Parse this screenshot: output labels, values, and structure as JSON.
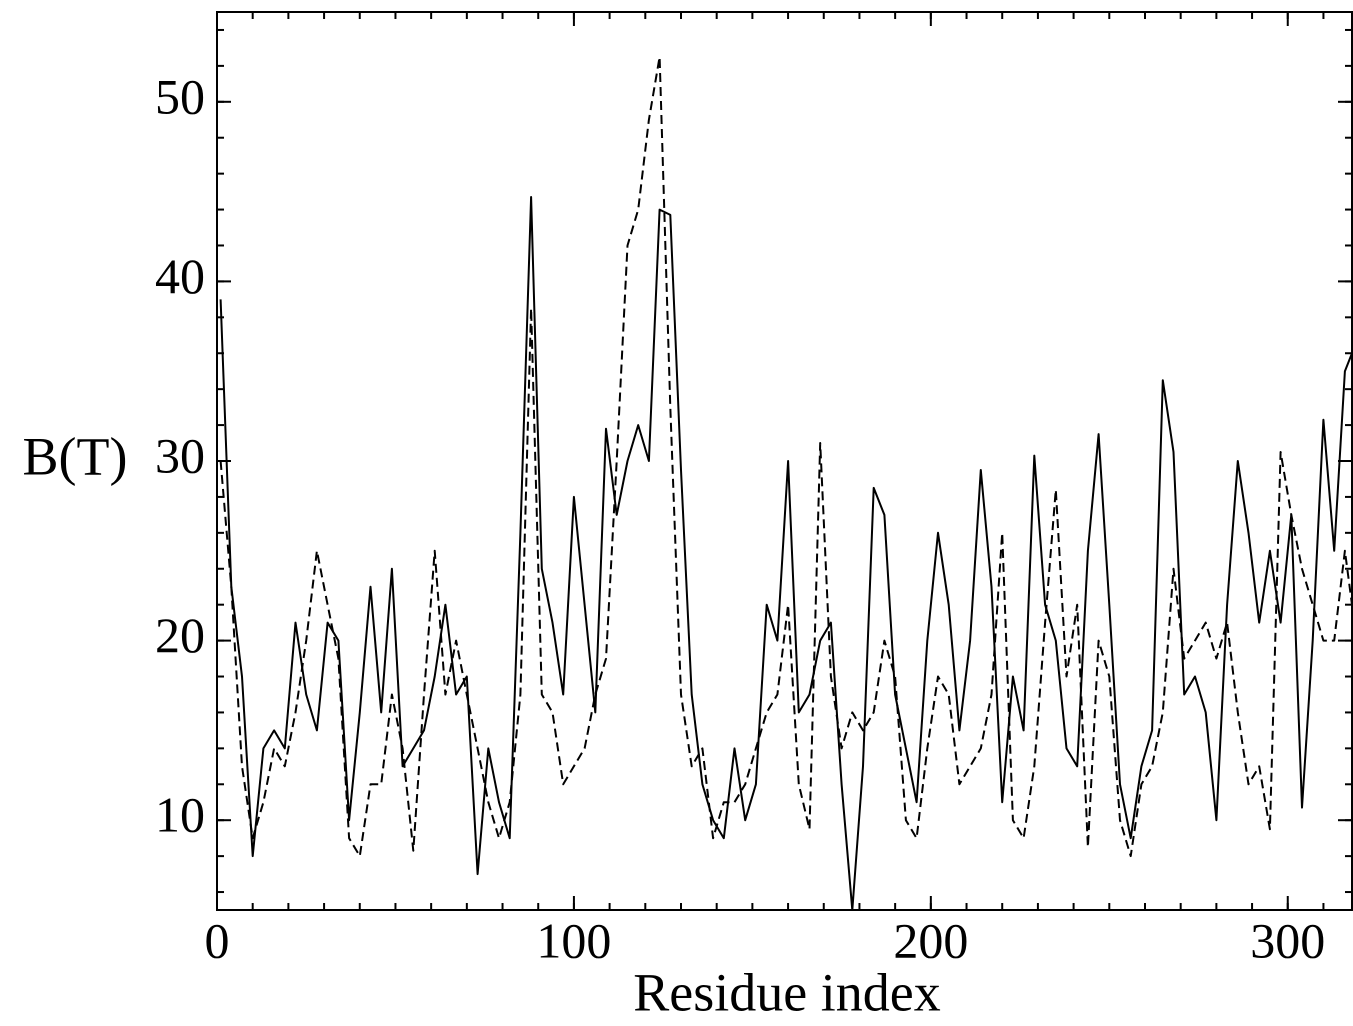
{
  "chart_data": {
    "type": "line",
    "xlabel": "Residue index",
    "ylabel": "B(T)",
    "xlim": [
      0,
      318
    ],
    "ylim": [
      5,
      55
    ],
    "xticks": [
      0,
      100,
      200,
      300
    ],
    "yticks": [
      10,
      20,
      30,
      40,
      50
    ],
    "minor_ticks": true,
    "grid": false,
    "x": [
      1,
      4,
      7,
      10,
      13,
      16,
      19,
      22,
      25,
      28,
      31,
      34,
      37,
      40,
      43,
      46,
      49,
      52,
      55,
      58,
      61,
      64,
      67,
      70,
      73,
      76,
      79,
      82,
      85,
      88,
      91,
      94,
      97,
      100,
      103,
      106,
      109,
      112,
      115,
      118,
      121,
      124,
      127,
      130,
      133,
      136,
      139,
      142,
      145,
      148,
      151,
      154,
      157,
      160,
      163,
      166,
      169,
      172,
      175,
      178,
      181,
      184,
      187,
      190,
      193,
      196,
      199,
      202,
      205,
      208,
      211,
      214,
      217,
      220,
      223,
      226,
      229,
      232,
      235,
      238,
      241,
      244,
      247,
      250,
      253,
      256,
      259,
      262,
      265,
      268,
      271,
      274,
      277,
      280,
      283,
      286,
      289,
      292,
      295,
      298,
      301,
      304,
      307,
      310,
      313,
      316,
      318
    ],
    "series": [
      {
        "color": "#000000",
        "dash": false,
        "values": [
          39,
          23,
          18,
          8,
          14,
          15,
          14,
          21,
          17,
          15,
          21,
          20,
          10,
          16,
          23,
          16,
          24,
          13,
          14,
          15,
          18,
          22,
          17,
          18,
          7,
          14,
          11,
          9,
          26,
          44.7,
          24,
          21,
          17,
          28,
          22,
          16,
          31.8,
          27,
          30,
          32,
          30,
          44,
          43.7,
          29.5,
          17,
          12,
          10,
          9,
          14,
          10,
          12,
          22,
          20,
          30,
          16,
          17,
          20,
          21,
          12,
          5,
          13,
          28.5,
          27,
          17,
          14,
          11,
          20,
          26,
          22,
          15,
          20,
          29.5,
          23,
          11,
          18,
          15,
          30.3,
          22,
          20,
          14,
          13,
          25,
          31.5,
          22,
          12,
          9,
          13,
          15,
          34.5,
          30.5,
          17,
          18,
          16,
          10,
          22,
          30,
          26,
          21,
          25,
          21,
          27,
          10.7,
          20,
          32.3,
          25,
          35,
          36
        ]
      },
      {
        "color": "#000000",
        "dash": true,
        "values": [
          30,
          23,
          13,
          9,
          11,
          14,
          13,
          16,
          20,
          25,
          22,
          19,
          9,
          8,
          12,
          12,
          17,
          14,
          8.3,
          17,
          25,
          17,
          20,
          17,
          14,
          11,
          9,
          11,
          17,
          38.5,
          17,
          16,
          12,
          13,
          14,
          17,
          19,
          30,
          42,
          44,
          49,
          52.5,
          33,
          17,
          13,
          14,
          9,
          11,
          11,
          12,
          14,
          16,
          17,
          22,
          12,
          9.5,
          31,
          18,
          14,
          16,
          15,
          16,
          20,
          18,
          10,
          9,
          14,
          18,
          17,
          12,
          13,
          14,
          17,
          26,
          10,
          9,
          13,
          21,
          28.4,
          18,
          22,
          8.5,
          20,
          18,
          10,
          8,
          12,
          13,
          16,
          24,
          19,
          20,
          21,
          19,
          21,
          16,
          12,
          13,
          9.5,
          30.5,
          27,
          24,
          22,
          20,
          20,
          25,
          22
        ]
      }
    ]
  }
}
